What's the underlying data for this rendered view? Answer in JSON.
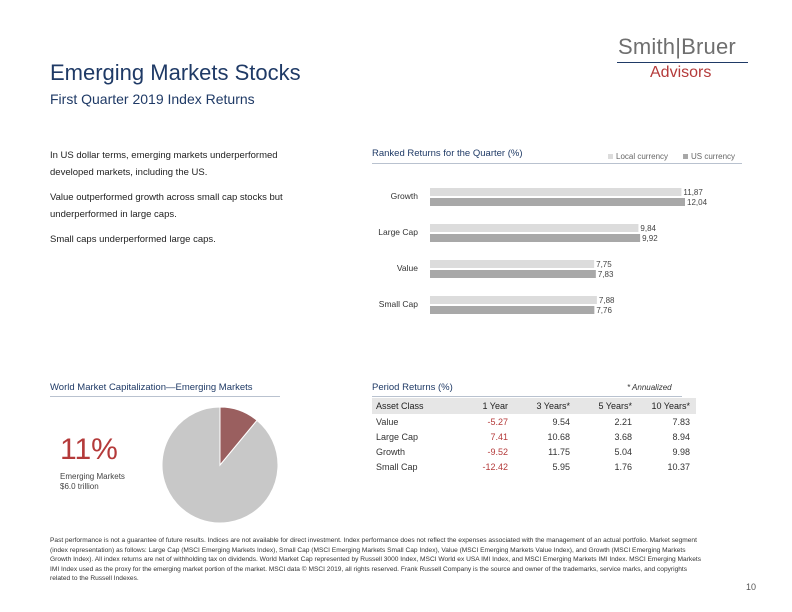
{
  "header": {
    "title": "Emerging Markets Stocks",
    "subtitle": "First Quarter 2019 Index Returns",
    "logo_brand": "Smith|Bruer",
    "logo_sub": "Advisors"
  },
  "intro": {
    "paragraphs": [
      "In US dollar terms, emerging markets underperformed developed markets, including the US.",
      "Value outperformed growth across small cap stocks but underperformed in large caps.",
      "Small caps underperformed large caps."
    ]
  },
  "ranked": {
    "heading": "Ranked Returns for the Quarter (%)",
    "legend": [
      "Local currency",
      "US currency"
    ]
  },
  "chart_data": {
    "type": "bar",
    "orientation": "horizontal",
    "title": "Ranked Returns for the Quarter (%)",
    "categories": [
      "Growth",
      "Large Cap",
      "Value",
      "Small Cap"
    ],
    "series": [
      {
        "name": "Local currency",
        "values": [
          11.87,
          9.84,
          7.75,
          7.88
        ],
        "labels": [
          "11,87",
          "9,84",
          "7,75",
          "7,88"
        ]
      },
      {
        "name": "US currency",
        "values": [
          12.04,
          9.92,
          7.83,
          7.76
        ],
        "labels": [
          "12,04",
          "9,92",
          "7,83",
          "7,76"
        ]
      }
    ],
    "xlim": [
      0,
      12.04
    ],
    "colors": [
      "#dcdcdc",
      "#a8a8a8"
    ]
  },
  "world_cap": {
    "heading": "World Market Capitalization—Emerging Markets",
    "percent": "11%",
    "label": "Emerging Markets",
    "value": "$6.0 trillion",
    "share": 0.11,
    "colors": {
      "slice": "#9a5f5f",
      "rest": "#c8c8c8"
    }
  },
  "period": {
    "heading": "Period Returns (%)",
    "annotation": "* Annualized",
    "columns": [
      "Asset Class",
      "1 Year",
      "3 Years*",
      "5 Years*",
      "10 Years*"
    ],
    "rows": [
      [
        "Value",
        "-5.27",
        "9.54",
        "2.21",
        "7.83"
      ],
      [
        "Large Cap",
        "7.41",
        "10.68",
        "3.68",
        "8.94"
      ],
      [
        "Growth",
        "-9.52",
        "11.75",
        "5.04",
        "9.98"
      ],
      [
        "Small Cap",
        "-12.42",
        "5.95",
        "1.76",
        "10.37"
      ]
    ]
  },
  "footer": {
    "disclaimer": "Past performance is not a guarantee of future results. Indices are not available for direct investment. Index performance does not reflect the expenses associated with the management of an actual portfolio. Market segment (index representation) as follows: Large Cap (MSCI Emerging Markets Index), Small Cap (MSCI Emerging Markets Small Cap Index), Value (MSCI Emerging Markets Value Index), and Growth (MSCI Emerging Markets Growth Index). All index returns are net of withholding tax on dividends. World Market Cap represented by Russell 3000 Index, MSCI World ex USA IMI Index, and MSCI Emerging Markets IMI Index. MSCI Emerging Markets IMI Index used as the proxy for the emerging market portion of the market. MSCI data © MSCI 2019, all rights reserved. Frank Russell Company is the source and owner of the trademarks, service marks, and copyrights related to the Russell Indexes.",
    "page_number": "10"
  }
}
